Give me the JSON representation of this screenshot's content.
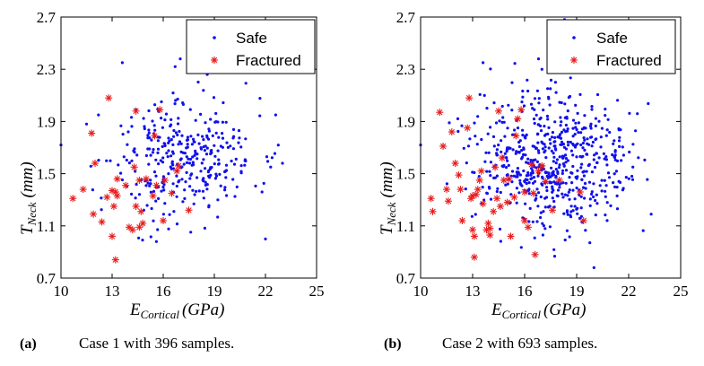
{
  "colors": {
    "safe": "#1010ee",
    "fractured": "#e81c1c",
    "axis": "#000000"
  },
  "chart_data": [
    {
      "type": "scatter",
      "panel_label": "(a)",
      "caption": "Case 1 with 396 samples.",
      "xlabel_main": "E",
      "xlabel_sub": "Cortical",
      "xlabel_units": "(GPa)",
      "ylabel_main": "T",
      "ylabel_sub": "Neck",
      "ylabel_units": "(mm)",
      "xlim": [
        10,
        25
      ],
      "ylim": [
        0.7,
        2.7
      ],
      "xticks": [
        10,
        13,
        16,
        19,
        22,
        25
      ],
      "yticks": [
        0.7,
        1.1,
        1.5,
        1.9,
        2.3,
        2.7
      ],
      "xtick_labels": [
        "10",
        "13",
        "16",
        "19",
        "22",
        "25"
      ],
      "ytick_labels": [
        "0.7",
        "1.1",
        "1.5",
        "1.9",
        "2.3",
        "2.7"
      ],
      "legend": {
        "position": "top-right",
        "entries": [
          "Safe",
          "Fractured"
        ]
      },
      "series": [
        {
          "name": "Safe",
          "marker": "dot",
          "count": 350,
          "cluster": {
            "x_mean": 17.3,
            "x_sd": 2.2,
            "y_mean": 1.62,
            "y_sd": 0.25,
            "x_range": [
              11.5,
              23.2
            ],
            "y_range": [
              0.98,
              2.36
            ]
          },
          "points": [
            [
              10,
              1.72
            ],
            [
              11.5,
              1.88
            ],
            [
              12.2,
              1.95
            ],
            [
              13.6,
              2.35
            ],
            [
              14.4,
              1.99
            ],
            [
              22.6,
              1.95
            ],
            [
              23.0,
              1.58
            ],
            [
              22.0,
              1.0
            ],
            [
              21.8,
              1.36
            ],
            [
              17.0,
              2.38
            ],
            [
              16.7,
              2.32
            ],
            [
              15.6,
              0.98
            ]
          ]
        },
        {
          "name": "Fractured",
          "marker": "asterisk",
          "points": [
            [
              10.7,
              1.31
            ],
            [
              11.3,
              1.38
            ],
            [
              11.8,
              1.81
            ],
            [
              12.0,
              1.58
            ],
            [
              11.9,
              1.19
            ],
            [
              12.4,
              1.13
            ],
            [
              12.7,
              1.32
            ],
            [
              12.8,
              2.08
            ],
            [
              13.0,
              1.37
            ],
            [
              13.2,
              1.36
            ],
            [
              13.3,
              1.46
            ],
            [
              13.3,
              1.33
            ],
            [
              13.1,
              1.25
            ],
            [
              13.0,
              1.02
            ],
            [
              13.2,
              0.84
            ],
            [
              14.0,
              1.09
            ],
            [
              14.2,
              1.07
            ],
            [
              14.3,
              1.55
            ],
            [
              14.4,
              1.25
            ],
            [
              14.4,
              1.98
            ],
            [
              14.6,
              1.45
            ],
            [
              14.7,
              1.21
            ],
            [
              14.8,
              1.12
            ],
            [
              15.0,
              1.46
            ],
            [
              15.4,
              1.33
            ],
            [
              15.5,
              1.79
            ],
            [
              15.6,
              1.41
            ],
            [
              15.8,
              1.99
            ],
            [
              16.0,
              1.14
            ],
            [
              16.1,
              1.45
            ],
            [
              16.5,
              1.35
            ],
            [
              16.8,
              1.52
            ],
            [
              16.9,
              1.56
            ],
            [
              17.5,
              1.22
            ],
            [
              14.6,
              1.09
            ],
            [
              13.8,
              1.41
            ]
          ]
        }
      ]
    },
    {
      "type": "scatter",
      "panel_label": "(b)",
      "caption": "Case 2 with 693 samples.",
      "xlabel_main": "E",
      "xlabel_sub": "Cortical",
      "xlabel_units": "(GPa)",
      "ylabel_main": "T",
      "ylabel_sub": "Neck",
      "ylabel_units": "(mm)",
      "xlim": [
        10,
        25
      ],
      "ylim": [
        0.7,
        2.7
      ],
      "xticks": [
        10,
        13,
        16,
        19,
        22,
        25
      ],
      "yticks": [
        0.7,
        1.1,
        1.5,
        1.9,
        2.3,
        2.7
      ],
      "xtick_labels": [
        "10",
        "13",
        "16",
        "19",
        "22",
        "25"
      ],
      "ytick_labels": [
        "0.7",
        "1.1",
        "1.5",
        "1.9",
        "2.3",
        "2.7"
      ],
      "legend": {
        "position": "top-right",
        "entries": [
          "Safe",
          "Fractured"
        ]
      },
      "series": [
        {
          "name": "Safe",
          "marker": "dot",
          "count": 620,
          "cluster": {
            "x_mean": 17.4,
            "x_sd": 2.3,
            "y_mean": 1.6,
            "y_sd": 0.26,
            "x_range": [
              11.5,
              23.4
            ],
            "y_range": [
              0.8,
              2.4
            ]
          },
          "points": [
            [
              18.3,
              2.68
            ],
            [
              20.0,
              0.78
            ],
            [
              10.0,
              1.72
            ],
            [
              23.3,
              1.19
            ],
            [
              22.5,
              1.96
            ],
            [
              13.6,
              2.35
            ],
            [
              16.8,
              2.38
            ],
            [
              17.0,
              2.3
            ]
          ]
        },
        {
          "name": "Fractured",
          "marker": "asterisk",
          "points": [
            [
              10.6,
              1.31
            ],
            [
              10.7,
              1.21
            ],
            [
              11.1,
              1.97
            ],
            [
              11.3,
              1.71
            ],
            [
              11.5,
              1.38
            ],
            [
              11.6,
              1.29
            ],
            [
              11.8,
              1.82
            ],
            [
              12.0,
              1.58
            ],
            [
              12.2,
              1.49
            ],
            [
              12.3,
              1.38
            ],
            [
              12.4,
              1.14
            ],
            [
              12.7,
              1.85
            ],
            [
              12.8,
              2.08
            ],
            [
              12.9,
              1.31
            ],
            [
              13.0,
              1.33
            ],
            [
              13.0,
              1.07
            ],
            [
              13.1,
              1.02
            ],
            [
              13.1,
              0.86
            ],
            [
              13.2,
              1.34
            ],
            [
              13.3,
              1.38
            ],
            [
              13.4,
              1.45
            ],
            [
              13.5,
              1.52
            ],
            [
              13.6,
              1.27
            ],
            [
              13.8,
              1.07
            ],
            [
              14.0,
              1.03
            ],
            [
              14.0,
              1.08
            ],
            [
              14.2,
              1.21
            ],
            [
              14.3,
              1.55
            ],
            [
              14.4,
              1.31
            ],
            [
              14.5,
              1.98
            ],
            [
              14.6,
              1.25
            ],
            [
              14.8,
              1.45
            ],
            [
              15.0,
              1.28
            ],
            [
              15.2,
              1.02
            ],
            [
              15.4,
              1.32
            ],
            [
              15.5,
              1.79
            ],
            [
              15.6,
              1.92
            ],
            [
              15.8,
              1.99
            ],
            [
              16.0,
              1.36
            ],
            [
              16.0,
              1.14
            ],
            [
              16.2,
              1.09
            ],
            [
              16.4,
              1.57
            ],
            [
              16.5,
              1.35
            ],
            [
              16.6,
              0.88
            ],
            [
              16.8,
              1.52
            ],
            [
              17.0,
              1.56
            ],
            [
              17.2,
              1.44
            ],
            [
              17.6,
              1.22
            ],
            [
              18.0,
              1.45
            ],
            [
              19.2,
              1.36
            ],
            [
              19.4,
              1.14
            ],
            [
              15.1,
              1.46
            ],
            [
              14.7,
              1.62
            ],
            [
              13.9,
              1.12
            ]
          ]
        }
      ]
    }
  ]
}
